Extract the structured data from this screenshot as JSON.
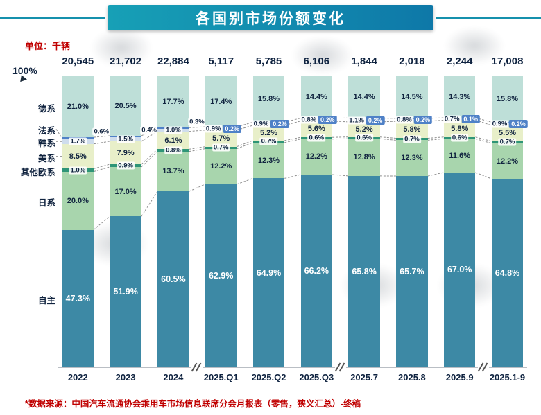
{
  "header": {
    "title": "各国别市场份额变化",
    "unit_label": "单位：千辆"
  },
  "axis": {
    "top_label": "100%"
  },
  "footer": {
    "source_note": "*数据来源：中国汽车流通协会乘用车市场信息联席分会月报表（零售，狭义汇总）-终稿"
  },
  "colors": {
    "banner_start": "#17a0b6",
    "banner_end": "#0e78a8",
    "accent_red": "#c00000",
    "label_navy": "#10233f",
    "badge_blue": "#4f81c7",
    "connector_gray": "#8f8f8f"
  },
  "chart_data": {
    "type": "bar",
    "variant": "stacked-percent-column",
    "title": "各国别市场份额变化",
    "unit": "千辆",
    "ylim": [
      0,
      100
    ],
    "grid": false,
    "legend_position": "left-labels",
    "categories": [
      "2022",
      "2023",
      "2024",
      "2025.Q1",
      "2025.Q2",
      "2025.Q3",
      "2025.7",
      "2025.8",
      "2025.9",
      "2025.1-9"
    ],
    "totals": [
      "20,545",
      "21,702",
      "22,884",
      "5,117",
      "5,785",
      "6,106",
      "1,844",
      "2,018",
      "2,244",
      "17,008"
    ],
    "axis_breaks_after": [
      "2024",
      "2025.Q3",
      "2025.9"
    ],
    "series": [
      {
        "name": "德系",
        "color": "#bedfd8",
        "values": [
          21.0,
          20.5,
          17.7,
          17.4,
          15.8,
          14.4,
          14.4,
          14.5,
          14.3,
          15.8
        ]
      },
      {
        "name": "法系",
        "color": "#4f81c7",
        "values": [
          0.6,
          0.4,
          0.3,
          0.2,
          0.2,
          0.2,
          0.2,
          0.2,
          0.1,
          0.2
        ]
      },
      {
        "name": "韩系",
        "color": "#cfdded",
        "values": [
          1.7,
          1.5,
          1.0,
          0.9,
          0.9,
          0.8,
          1.1,
          0.8,
          0.7,
          0.9
        ]
      },
      {
        "name": "美系",
        "color": "#e8efc9",
        "values": [
          8.5,
          7.9,
          6.1,
          5.7,
          5.2,
          5.6,
          5.2,
          5.8,
          5.8,
          5.5
        ]
      },
      {
        "name": "其他欧系",
        "color": "#2e9577",
        "values": [
          1.0,
          0.9,
          0.8,
          0.7,
          0.7,
          0.6,
          0.6,
          0.7,
          0.6,
          0.7
        ]
      },
      {
        "name": "日系",
        "color": "#a8d5ad",
        "values": [
          20.0,
          17.0,
          13.7,
          12.2,
          12.3,
          12.2,
          12.8,
          12.3,
          11.6,
          12.2
        ]
      },
      {
        "name": "自主",
        "color": "#3d89a5",
        "values": [
          47.3,
          51.9,
          60.5,
          62.9,
          64.9,
          66.2,
          65.8,
          65.7,
          67.0,
          64.8
        ]
      }
    ]
  }
}
